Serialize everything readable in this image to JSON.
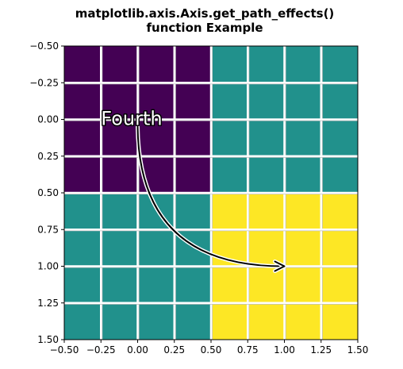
{
  "chart_data": {
    "type": "heatmap",
    "title_line1": "matplotlib.axis.Axis.get_path_effects()",
    "title_line2": "function Example",
    "xlabel": "",
    "ylabel": "",
    "xlim": [
      -0.5,
      1.5
    ],
    "ylim": [
      1.5,
      -0.5
    ],
    "xticks": [
      "−0.50",
      "−0.25",
      "0.00",
      "0.25",
      "0.50",
      "0.75",
      "1.00",
      "1.25",
      "1.50"
    ],
    "yticks": [
      "−0.50",
      "−0.25",
      "0.00",
      "0.25",
      "0.50",
      "0.75",
      "1.00",
      "1.25",
      "1.50"
    ],
    "xtick_values": [
      -0.5,
      -0.25,
      0.0,
      0.25,
      0.5,
      0.75,
      1.0,
      1.25,
      1.5
    ],
    "ytick_values": [
      -0.5,
      -0.25,
      0.0,
      0.25,
      0.5,
      0.75,
      1.0,
      1.25,
      1.5
    ],
    "matrix": [
      [
        1,
        2
      ],
      [
        2,
        3
      ]
    ],
    "cell_colors": {
      "1": "#440154",
      "2": "#21918c",
      "3": "#fde725"
    },
    "grid": {
      "on": true,
      "step": 0.25,
      "color": "#ffffff",
      "shadow": "#bfbfbf"
    },
    "annotation": {
      "text": "Fourth",
      "text_x": -0.25,
      "text_y": 0.0,
      "arrow_from": [
        0.0,
        0.05
      ],
      "arrow_to": [
        1.0,
        1.0
      ],
      "arrow_color": "#000000",
      "arrow_glow": "#ffffff"
    }
  }
}
